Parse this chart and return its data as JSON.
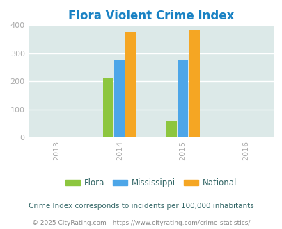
{
  "title": "Flora Violent Crime Index",
  "years": [
    2014,
    2015
  ],
  "x_ticks": [
    2013,
    2014,
    2015,
    2016
  ],
  "flora": [
    212,
    57
  ],
  "mississippi": [
    278,
    276
  ],
  "national": [
    376,
    383
  ],
  "bar_colors": {
    "flora": "#8dc63f",
    "mississippi": "#4da6e8",
    "national": "#f5a623"
  },
  "ylim": [
    0,
    400
  ],
  "yticks": [
    0,
    100,
    200,
    300,
    400
  ],
  "bg_color": "#dce9e8",
  "title_color": "#1a82c4",
  "legend_labels": [
    "Flora",
    "Mississippi",
    "National"
  ],
  "note": "Crime Index corresponds to incidents per 100,000 inhabitants",
  "copyright": "© 2025 CityRating.com - https://www.cityrating.com/crime-statistics/",
  "note_color": "#336666",
  "copyright_color": "#888888",
  "bar_width": 0.18,
  "tick_label_color": "#aaaaaa"
}
